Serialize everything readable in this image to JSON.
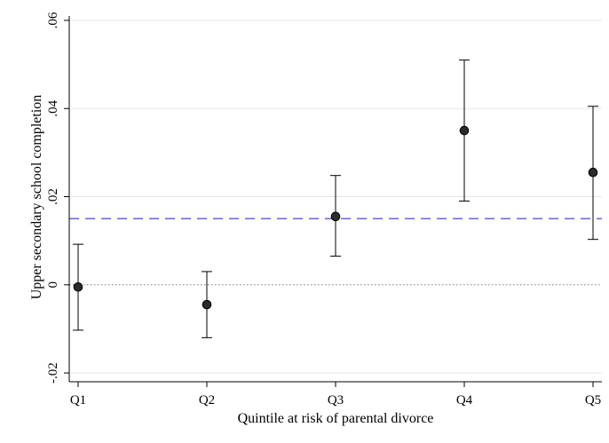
{
  "chart_data": {
    "type": "scatter",
    "subtype": "point-estimates-with-confidence-intervals",
    "xlabel": "Quintile at risk of parental divorce",
    "ylabel": "Upper secondary school completion",
    "categories": [
      "Q1",
      "Q2",
      "Q3",
      "Q4",
      "Q5"
    ],
    "yticks": [
      -0.02,
      0,
      0.02,
      0.04,
      0.06
    ],
    "ytick_labels": [
      "-.02",
      "0",
      ".02",
      ".04",
      ".06"
    ],
    "ylim": [
      -0.022,
      0.061
    ],
    "grid": true,
    "series": [
      {
        "estimates": [
          -0.0005,
          -0.0045,
          0.0155,
          0.035,
          0.0255
        ],
        "ci_low": [
          -0.0103,
          -0.012,
          0.0065,
          0.019,
          0.0103
        ],
        "ci_high": [
          0.0092,
          0.003,
          0.0248,
          0.051,
          0.0405
        ]
      }
    ],
    "reference_lines": [
      {
        "y": 0.015,
        "style": "dashed",
        "color": "#6a6fd6"
      },
      {
        "y": 0,
        "style": "dotted",
        "color": "#7a7a7a"
      }
    ],
    "colors": {
      "marker": "#2b2b2b",
      "marker_edge": "#000000",
      "errorbar": "#000000",
      "grid": "#e6e6e6",
      "axis": "#000000"
    }
  }
}
